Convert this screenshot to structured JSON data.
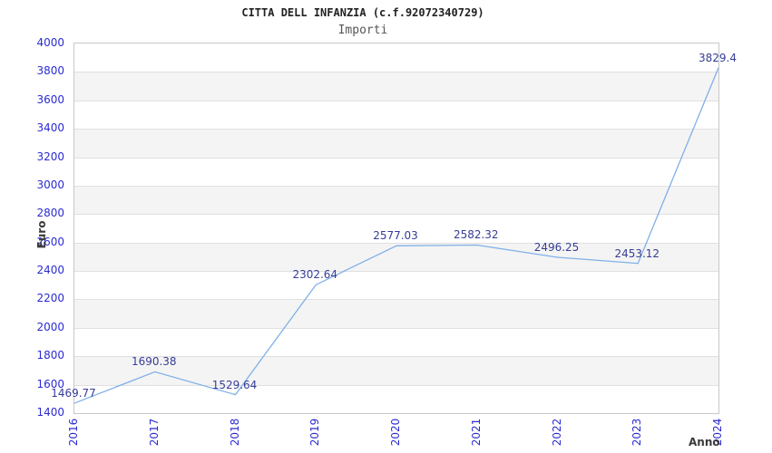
{
  "chart_data": {
    "type": "line",
    "title": "CITTA DELL INFANZIA (c.f.92072340729)",
    "subtitle": "Importi",
    "xlabel": "Anno",
    "ylabel": "Euro",
    "categories": [
      "2016",
      "2017",
      "2018",
      "2019",
      "2020",
      "2021",
      "2022",
      "2023",
      "2024"
    ],
    "series": [
      {
        "name": "Importi",
        "values": [
          1469.77,
          1690.38,
          1529.64,
          2302.64,
          2577.03,
          2582.32,
          2496.25,
          2453.12,
          3829.4
        ],
        "point_labels": [
          "1469.77",
          "1690.38",
          "1529.64",
          "2302.64",
          "2577.03",
          "2582.32",
          "2496.25",
          "2453.12",
          "3829.4"
        ]
      }
    ],
    "ylim": [
      1400,
      4000
    ],
    "yticks": [
      1400,
      1600,
      1800,
      2000,
      2200,
      2400,
      2600,
      2800,
      3000,
      3200,
      3400,
      3600,
      3800,
      4000
    ],
    "grid": "horizontal",
    "alternating_bands": true,
    "legend_position": "none",
    "colors": {
      "line": "#7fb0e8",
      "tick_label": "#2b2bd0",
      "point_label": "#363d96",
      "band": "#f4f4f4",
      "gridline": "#e0e0e0",
      "plot_border": "#c8c8c8",
      "axis_title": "#3a3a3a",
      "title": "#222222",
      "subtitle": "#555555"
    }
  }
}
